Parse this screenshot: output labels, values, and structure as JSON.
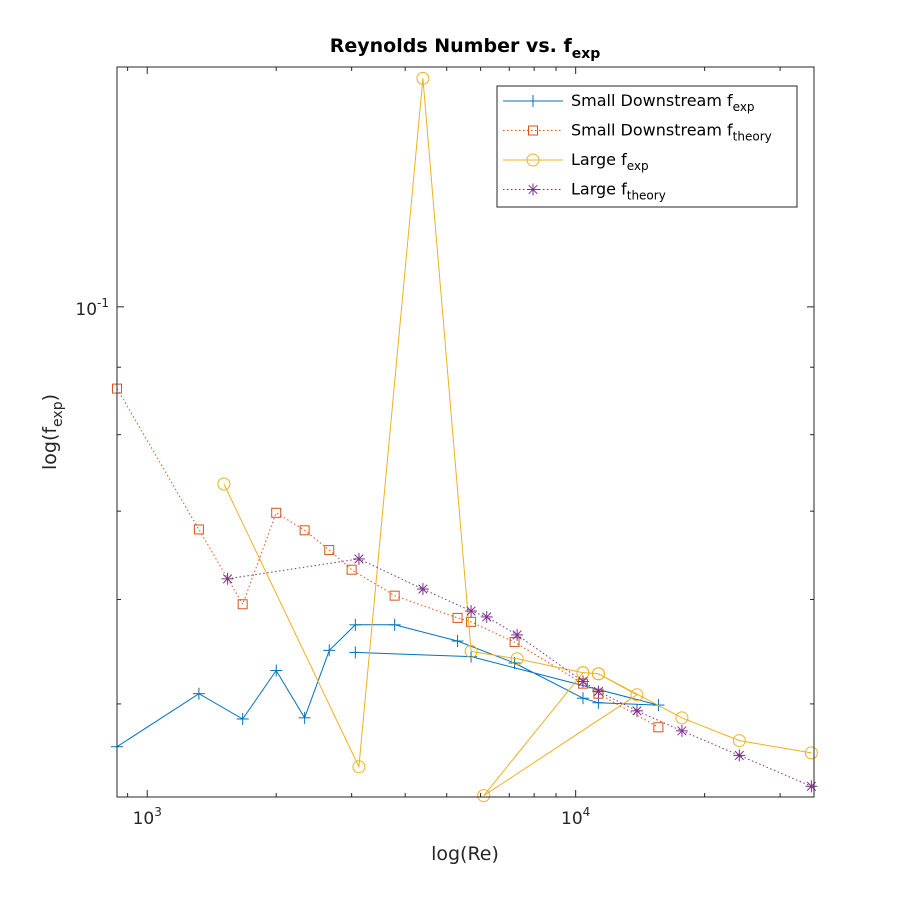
{
  "chart_data": {
    "type": "line",
    "title": {
      "text": "Reynolds Number vs. f",
      "sub": "exp"
    },
    "xlabel": "log(Re)",
    "ylabel": {
      "text": "log(f",
      "sub": "exp",
      "suffix": ")"
    },
    "xscale": "log",
    "yscale": "log",
    "xlim": [
      850,
      36000
    ],
    "ylim": [
      0.0425,
      0.152
    ],
    "xticks": [
      {
        "value": 1000,
        "base": "10",
        "exp": "3"
      },
      {
        "value": 10000,
        "base": "10",
        "exp": "4"
      }
    ],
    "yticks": [
      {
        "value": 0.1,
        "base": "10",
        "exp": "-1"
      }
    ],
    "grid": false,
    "box": true,
    "legend_position": "top-right",
    "series": [
      {
        "name": "Small Downstream f",
        "name_sub": "exp",
        "color": "#0072BD",
        "line_style": "solid",
        "marker": "plus",
        "x": [
          850,
          1320,
          1670,
          2000,
          2330,
          2660,
          3060,
          3780,
          5300,
          7200,
          10400,
          11300,
          15600,
          5700,
          3060
        ],
        "y": [
          0.0464,
          0.0509,
          0.0487,
          0.053,
          0.0488,
          0.0549,
          0.0574,
          0.0574,
          0.0558,
          0.0537,
          0.0505,
          0.0501,
          0.0499,
          0.0543,
          0.0547
        ]
      },
      {
        "name": "Small Downstream f",
        "name_sub": "theory",
        "color": "#D95319",
        "line_style": "dotted",
        "marker": "square",
        "x": [
          850,
          1320,
          1670,
          2000,
          2330,
          2660,
          3000,
          3780,
          5300,
          5700,
          7200,
          10400,
          11300,
          15600
        ],
        "y": [
          0.0867,
          0.0678,
          0.0595,
          0.0698,
          0.0677,
          0.0654,
          0.0632,
          0.0604,
          0.0581,
          0.0577,
          0.0557,
          0.0518,
          0.0509,
          0.048
        ]
      },
      {
        "name": "Large f",
        "name_sub": "exp",
        "color": "#EDB120",
        "line_style": "solid",
        "marker": "circle",
        "x": [
          1510,
          3120,
          4400,
          5700,
          7300,
          10400,
          11300,
          13900,
          6100,
          10400,
          11300,
          17700,
          24100,
          35500
        ],
        "y": [
          0.0734,
          0.0448,
          0.149,
          0.0548,
          0.0541,
          0.0528,
          0.0527,
          0.0508,
          0.0426,
          0.0528,
          0.0527,
          0.0488,
          0.0469,
          0.0459
        ]
      },
      {
        "name": "Large f",
        "name_sub": "theory",
        "color": "#7E2F8E",
        "line_style": "dotted",
        "marker": "asterisk",
        "x": [
          1540,
          3120,
          4400,
          5700,
          6200,
          7300,
          10400,
          11300,
          13900,
          17700,
          24100,
          35500
        ],
        "y": [
          0.0622,
          0.0644,
          0.0611,
          0.0588,
          0.0582,
          0.0564,
          0.052,
          0.0511,
          0.0494,
          0.0477,
          0.0457,
          0.0433
        ]
      }
    ]
  }
}
